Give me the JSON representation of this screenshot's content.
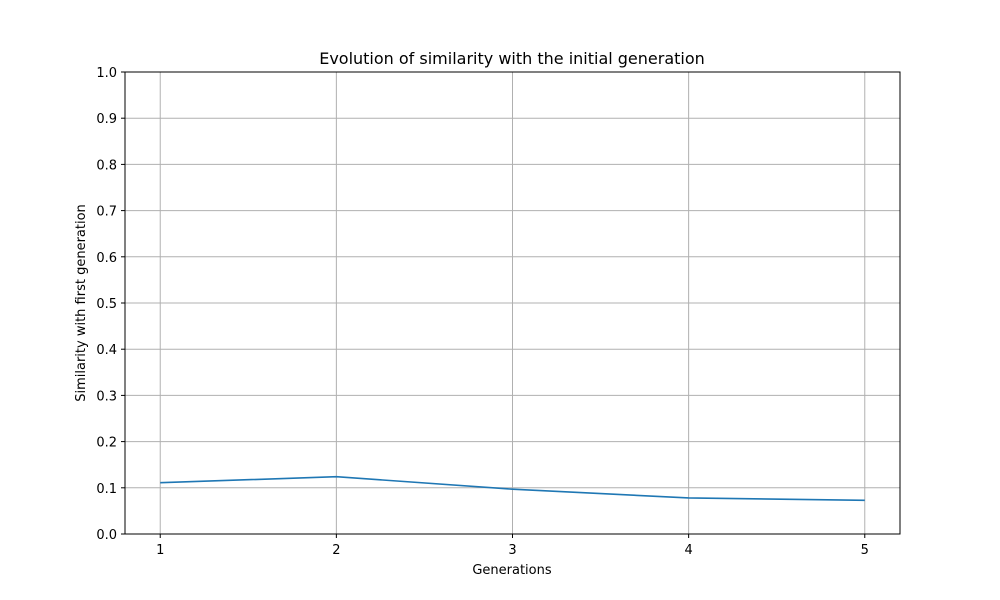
{
  "chart_data": {
    "type": "line",
    "title": "Evolution of similarity with the initial generation",
    "xlabel": "Generations",
    "ylabel": "Similarity with first generation",
    "x": [
      1,
      2,
      3,
      4,
      5
    ],
    "x_ticks": [
      1,
      2,
      3,
      4,
      5
    ],
    "y_ticks": [
      0.0,
      0.1,
      0.2,
      0.3,
      0.4,
      0.5,
      0.6,
      0.7,
      0.8,
      0.9,
      1.0
    ],
    "y_tick_labels": [
      "0.0",
      "0.1",
      "0.2",
      "0.3",
      "0.4",
      "0.5",
      "0.6",
      "0.7",
      "0.8",
      "0.9",
      "1.0"
    ],
    "xlim": [
      0.8,
      5.2
    ],
    "ylim": [
      0.0,
      1.0
    ],
    "grid": true,
    "series": [
      {
        "values": [
          0.111,
          0.124,
          0.097,
          0.078,
          0.073
        ],
        "color": "#1f77b4"
      }
    ]
  }
}
